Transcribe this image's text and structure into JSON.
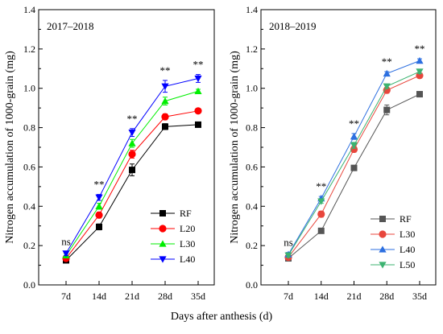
{
  "figure": {
    "xlabel": "Days after anthesis (d)"
  },
  "chart_data": [
    {
      "type": "line",
      "title": "2017–2018",
      "xlabel": "",
      "ylabel": "Nitrogen accumulation of 1000-grain (mg)",
      "categories": [
        "7d",
        "14d",
        "21d",
        "28d",
        "35d"
      ],
      "ylim": [
        0,
        1.4
      ],
      "yticks": [
        "0.0",
        "0.2",
        "0.4",
        "0.6",
        "0.8",
        "1.0",
        "1.2",
        "1.4"
      ],
      "grid": false,
      "legend_position": "lower-right",
      "significance": [
        "ns",
        "**",
        "**",
        "**",
        "**"
      ],
      "series": [
        {
          "name": "RF",
          "color": "#000000",
          "marker": "square",
          "values": [
            0.125,
            0.295,
            0.585,
            0.805,
            0.815
          ],
          "errors": [
            0.01,
            0.015,
            0.03,
            0.015,
            0.01
          ]
        },
        {
          "name": "L20",
          "color": "#ff0000",
          "marker": "circle",
          "values": [
            0.135,
            0.355,
            0.665,
            0.855,
            0.885
          ],
          "errors": [
            0.01,
            0.015,
            0.02,
            0.015,
            0.01
          ]
        },
        {
          "name": "L30",
          "color": "#00ee00",
          "marker": "triangle-up",
          "values": [
            0.15,
            0.4,
            0.72,
            0.935,
            0.985
          ],
          "errors": [
            0.01,
            0.015,
            0.02,
            0.02,
            0.01
          ]
        },
        {
          "name": "L40",
          "color": "#0000ff",
          "marker": "triangle-down",
          "values": [
            0.16,
            0.445,
            0.775,
            1.01,
            1.05
          ],
          "errors": [
            0.01,
            0.015,
            0.02,
            0.03,
            0.02
          ]
        }
      ]
    },
    {
      "type": "line",
      "title": "2018–2019",
      "xlabel": "",
      "ylabel": "Nitrogen accumulation of 1000-grain (mg)",
      "categories": [
        "7d",
        "14d",
        "21d",
        "28d",
        "35d"
      ],
      "ylim": [
        0,
        1.4
      ],
      "yticks": [
        "0.0",
        "0.2",
        "0.4",
        "0.6",
        "0.8",
        "1.0",
        "1.2",
        "1.4"
      ],
      "grid": false,
      "legend_position": "lower-right",
      "significance": [
        "ns",
        "**",
        "**",
        "**",
        "**"
      ],
      "series": [
        {
          "name": "RF",
          "color": "#555555",
          "marker": "square",
          "values": [
            0.135,
            0.275,
            0.595,
            0.89,
            0.97
          ],
          "errors": [
            0.01,
            0.01,
            0.01,
            0.025,
            0.01
          ]
        },
        {
          "name": "L30",
          "color": "#e8463c",
          "marker": "circle",
          "values": [
            0.14,
            0.36,
            0.69,
            0.99,
            1.065
          ],
          "errors": [
            0.01,
            0.015,
            0.015,
            0.015,
            0.01
          ]
        },
        {
          "name": "L40",
          "color": "#2c6fe0",
          "marker": "triangle-up",
          "values": [
            0.155,
            0.44,
            0.755,
            1.075,
            1.14
          ],
          "errors": [
            0.01,
            0.01,
            0.015,
            0.01,
            0.01
          ]
        },
        {
          "name": "L50",
          "color": "#3cb371",
          "marker": "triangle-down",
          "values": [
            0.15,
            0.425,
            0.71,
            1.01,
            1.085
          ],
          "errors": [
            0.01,
            0.01,
            0.015,
            0.01,
            0.01
          ]
        }
      ]
    }
  ]
}
